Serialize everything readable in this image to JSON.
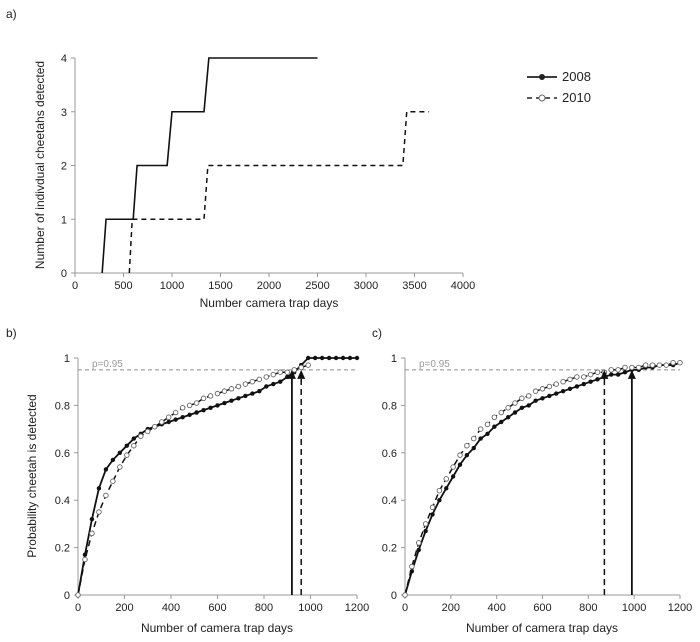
{
  "chart_data": [
    {
      "panel_label": "a)",
      "type": "line",
      "xlabel": "Number  camera  trap days",
      "ylabel": "Number of indivdual cheetahs detected",
      "xlim": [
        0,
        4000
      ],
      "ylim": [
        0,
        4
      ],
      "xticks": [
        0,
        500,
        1000,
        1500,
        2000,
        2500,
        3000,
        3500,
        4000
      ],
      "yticks": [
        0,
        1,
        2,
        3,
        4
      ],
      "legend_position": "right",
      "series": [
        {
          "name": "2008",
          "style": "solid",
          "marker": "filled-circle",
          "step_points": [
            [
              280,
              0
            ],
            [
              320,
              1
            ],
            [
              600,
              1
            ],
            [
              640,
              2
            ],
            [
              950,
              2
            ],
            [
              1000,
              3
            ],
            [
              1330,
              3
            ],
            [
              1380,
              4
            ],
            [
              2500,
              4
            ]
          ]
        },
        {
          "name": "2010",
          "style": "dashed",
          "marker": "open-circle",
          "step_points": [
            [
              560,
              0
            ],
            [
              590,
              1
            ],
            [
              1330,
              1
            ],
            [
              1370,
              2
            ],
            [
              3380,
              2
            ],
            [
              3420,
              3
            ],
            [
              3650,
              3
            ]
          ]
        }
      ]
    },
    {
      "panel_label": "b)",
      "type": "line",
      "xlabel": "Number of camera trap days",
      "ylabel": "Probability cheetah is detected",
      "xlim": [
        0,
        1200
      ],
      "ylim": [
        0,
        1
      ],
      "xticks": [
        0,
        200,
        400,
        600,
        800,
        1000,
        1200
      ],
      "yticks": [
        0,
        0.2,
        0.4,
        0.6,
        0.8,
        1
      ],
      "reference_line": {
        "y": 0.95,
        "label": "p=0.95"
      },
      "arrows": [
        {
          "series": "2008",
          "x": 920
        },
        {
          "series": "2010",
          "x": 960
        }
      ],
      "series": [
        {
          "name": "2008",
          "style": "solid",
          "marker": "filled-circle",
          "x": [
            0,
            30,
            60,
            90,
            120,
            150,
            180,
            210,
            240,
            270,
            300,
            330,
            360,
            390,
            420,
            450,
            480,
            510,
            540,
            570,
            600,
            630,
            660,
            690,
            720,
            750,
            780,
            810,
            840,
            870,
            900,
            930,
            960,
            990,
            1020,
            1050,
            1080,
            1110,
            1140,
            1170,
            1200
          ],
          "y": [
            0,
            0.17,
            0.32,
            0.45,
            0.53,
            0.57,
            0.6,
            0.63,
            0.66,
            0.68,
            0.7,
            0.71,
            0.72,
            0.73,
            0.74,
            0.75,
            0.76,
            0.77,
            0.78,
            0.79,
            0.8,
            0.81,
            0.82,
            0.83,
            0.84,
            0.85,
            0.86,
            0.88,
            0.89,
            0.9,
            0.92,
            0.94,
            0.97,
            1,
            1,
            1,
            1,
            1,
            1,
            1,
            1
          ]
        },
        {
          "name": "2010",
          "style": "dashed",
          "marker": "open-circle",
          "x": [
            0,
            30,
            60,
            90,
            120,
            150,
            180,
            210,
            240,
            270,
            300,
            330,
            360,
            390,
            420,
            450,
            480,
            510,
            540,
            570,
            600,
            630,
            660,
            690,
            720,
            750,
            780,
            810,
            840,
            870,
            900,
            930,
            960,
            990
          ],
          "y": [
            0,
            0.15,
            0.26,
            0.35,
            0.42,
            0.48,
            0.54,
            0.59,
            0.63,
            0.67,
            0.69,
            0.71,
            0.73,
            0.75,
            0.77,
            0.79,
            0.8,
            0.81,
            0.83,
            0.84,
            0.85,
            0.86,
            0.87,
            0.88,
            0.89,
            0.9,
            0.91,
            0.92,
            0.93,
            0.94,
            0.94,
            0.95,
            0.96,
            0.97
          ]
        }
      ]
    },
    {
      "panel_label": "c)",
      "type": "line",
      "xlabel": "Number of camera trap days",
      "ylabel": "",
      "xlim": [
        0,
        1200
      ],
      "ylim": [
        0,
        1
      ],
      "xticks": [
        0,
        200,
        400,
        600,
        800,
        1000,
        1200
      ],
      "yticks": [
        0,
        0.2,
        0.4,
        0.6,
        0.8,
        1
      ],
      "reference_line": {
        "y": 0.95,
        "label": "p=0.95"
      },
      "arrows": [
        {
          "series": "2010",
          "x": 870
        },
        {
          "series": "2008",
          "x": 990
        }
      ],
      "series": [
        {
          "name": "2008",
          "style": "solid",
          "marker": "filled-circle",
          "x": [
            0,
            30,
            60,
            90,
            120,
            150,
            180,
            210,
            240,
            270,
            300,
            330,
            360,
            390,
            420,
            450,
            480,
            510,
            540,
            570,
            600,
            630,
            660,
            690,
            720,
            750,
            780,
            810,
            840,
            870,
            900,
            930,
            960,
            990,
            1020,
            1050,
            1080,
            1110,
            1140,
            1170,
            1200
          ],
          "y": [
            0,
            0.1,
            0.19,
            0.27,
            0.34,
            0.4,
            0.45,
            0.5,
            0.55,
            0.59,
            0.62,
            0.66,
            0.68,
            0.71,
            0.73,
            0.75,
            0.77,
            0.79,
            0.8,
            0.82,
            0.83,
            0.84,
            0.85,
            0.86,
            0.87,
            0.88,
            0.89,
            0.9,
            0.91,
            0.92,
            0.93,
            0.93,
            0.94,
            0.95,
            0.95,
            0.96,
            0.96,
            0.97,
            0.97,
            0.97,
            0.98
          ]
        },
        {
          "name": "2010",
          "style": "dashed",
          "marker": "open-circle",
          "x": [
            0,
            30,
            60,
            90,
            120,
            150,
            180,
            210,
            240,
            270,
            300,
            330,
            360,
            390,
            420,
            450,
            480,
            510,
            540,
            570,
            600,
            630,
            660,
            690,
            720,
            750,
            780,
            810,
            840,
            870,
            900,
            930,
            960,
            990,
            1020,
            1050,
            1080,
            1110,
            1140,
            1170,
            1200
          ],
          "y": [
            0,
            0.12,
            0.22,
            0.3,
            0.37,
            0.44,
            0.49,
            0.54,
            0.59,
            0.63,
            0.66,
            0.7,
            0.72,
            0.75,
            0.77,
            0.79,
            0.81,
            0.83,
            0.84,
            0.86,
            0.87,
            0.88,
            0.89,
            0.9,
            0.91,
            0.92,
            0.92,
            0.93,
            0.94,
            0.94,
            0.95,
            0.95,
            0.96,
            0.96,
            0.96,
            0.97,
            0.97,
            0.97,
            0.97,
            0.98,
            0.98
          ]
        }
      ]
    }
  ]
}
